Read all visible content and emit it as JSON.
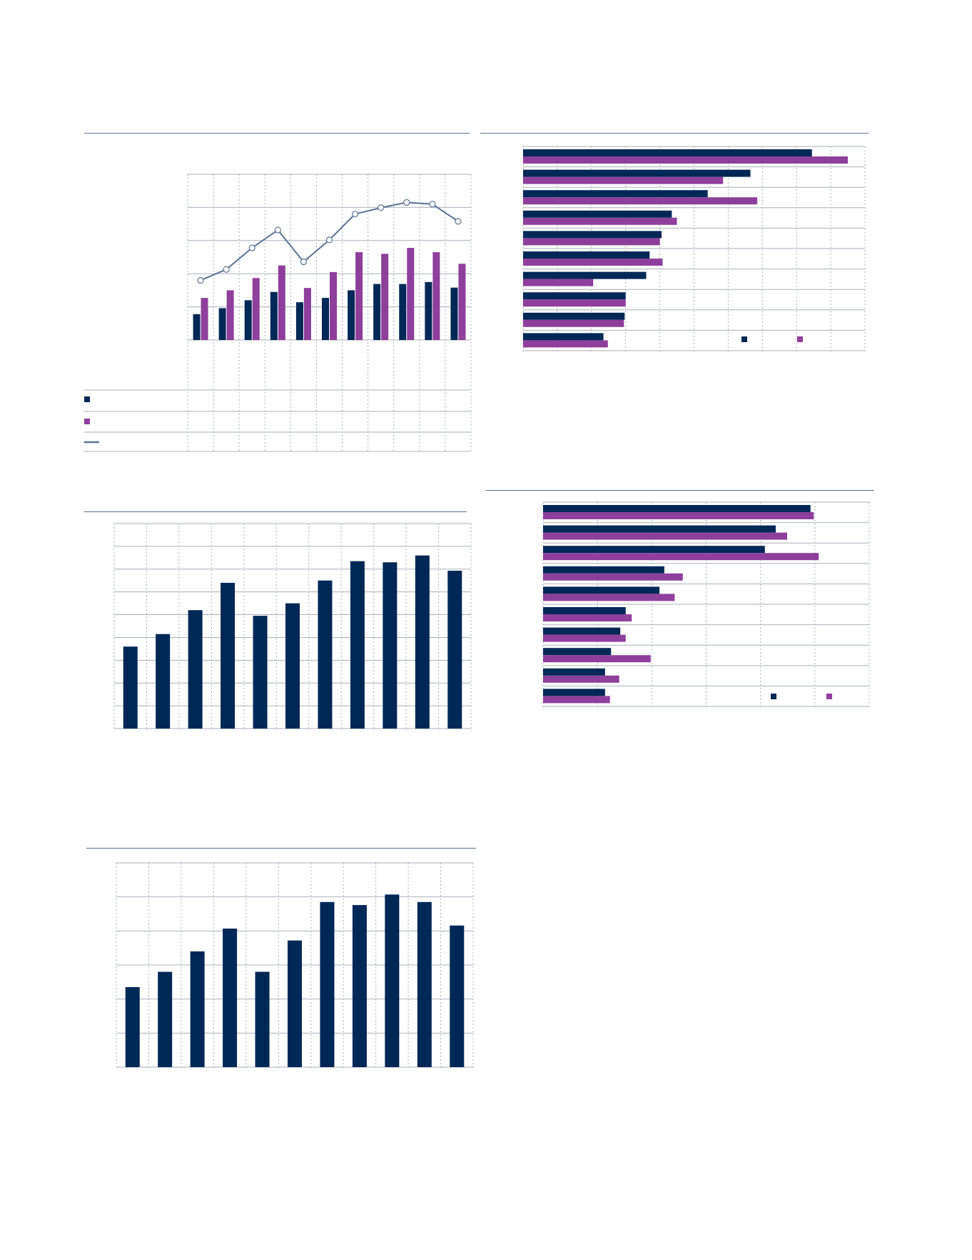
{
  "colors": {
    "navy": "#002856",
    "purple": "#8e3f9b",
    "line": "#5a7394",
    "grid": "#a9b0bb",
    "rule": "#5a7394"
  },
  "chart_data": [
    {
      "id": "chart-1",
      "type": "bar",
      "title": "",
      "categories": [
        "",
        "",
        "",
        "",
        "",
        "",
        "",
        "",
        "",
        "",
        ""
      ],
      "ylim": [
        0,
        5
      ],
      "y2lim": [
        0,
        5
      ],
      "grid": true,
      "legend": "table-left",
      "series": [
        {
          "values": [
            0.78,
            0.96,
            1.2,
            1.45,
            1.14,
            1.27,
            1.5,
            1.69,
            1.69,
            1.75,
            1.58
          ],
          "color": "navy"
        },
        {
          "values": [
            1.27,
            1.5,
            1.87,
            2.25,
            1.57,
            2.05,
            2.65,
            2.6,
            2.78,
            2.65,
            2.3
          ],
          "color": "purple"
        },
        {
          "type": "line",
          "values": [
            1.8,
            2.13,
            2.78,
            3.32,
            2.36,
            3.02,
            3.8,
            3.99,
            4.15,
            4.1,
            3.58
          ],
          "color": "line"
        }
      ]
    },
    {
      "id": "chart-2",
      "type": "bar",
      "orientation": "horizontal",
      "title": "",
      "categories": [
        "",
        "",
        "",
        "",
        "",
        "",
        "",
        "",
        "",
        ""
      ],
      "xlim": [
        0,
        10
      ],
      "grid": true,
      "legend": "bottom-right",
      "series": [
        {
          "values": [
            8.45,
            6.65,
            5.4,
            4.35,
            4.05,
            3.7,
            3.6,
            3.0,
            2.97,
            2.35
          ],
          "color": "navy"
        },
        {
          "values": [
            9.5,
            5.85,
            6.85,
            4.5,
            4.0,
            4.08,
            2.05,
            3.0,
            2.95,
            2.48
          ],
          "color": "purple"
        }
      ]
    },
    {
      "id": "chart-3",
      "type": "bar",
      "title": "",
      "categories": [
        "",
        "",
        "",
        "",
        "",
        "",
        "",
        "",
        "",
        "",
        ""
      ],
      "ylim": [
        0,
        9
      ],
      "grid": true,
      "series": [
        {
          "values": [
            3.6,
            4.15,
            5.2,
            6.4,
            4.95,
            5.5,
            6.5,
            7.35,
            7.3,
            7.6,
            6.93
          ],
          "color": "navy"
        }
      ]
    },
    {
      "id": "chart-4",
      "type": "bar",
      "orientation": "horizontal",
      "title": "",
      "categories": [
        "",
        "",
        "",
        "",
        "",
        "",
        "",
        "",
        "",
        ""
      ],
      "xlim": [
        0,
        6
      ],
      "grid": true,
      "legend": "bottom-right",
      "series": [
        {
          "values": [
            4.92,
            4.28,
            4.08,
            2.23,
            2.14,
            1.52,
            1.42,
            1.25,
            1.14,
            1.14
          ],
          "color": "navy"
        },
        {
          "values": [
            4.98,
            4.49,
            5.07,
            2.57,
            2.42,
            1.63,
            1.52,
            1.98,
            1.4,
            1.23
          ],
          "color": "purple"
        }
      ]
    },
    {
      "id": "chart-5",
      "type": "bar",
      "title": "",
      "categories": [
        "",
        "",
        "",
        "",
        "",
        "",
        "",
        "",
        "",
        "",
        ""
      ],
      "ylim": [
        0,
        6
      ],
      "grid": true,
      "series": [
        {
          "values": [
            2.35,
            2.8,
            3.4,
            4.07,
            2.8,
            3.72,
            4.85,
            4.76,
            5.07,
            4.85,
            4.16
          ],
          "color": "navy"
        }
      ]
    }
  ]
}
